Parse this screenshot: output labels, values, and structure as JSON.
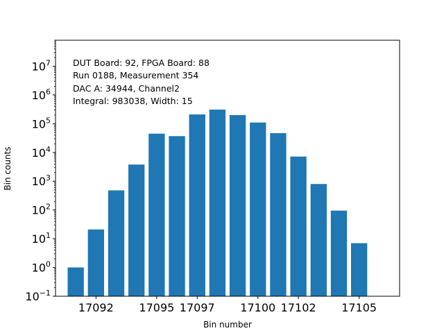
{
  "chart_data": {
    "type": "bar",
    "scale_y": "log",
    "x": [
      17091,
      17092,
      17093,
      17094,
      17095,
      17096,
      17097,
      17098,
      17099,
      17100,
      17101,
      17102,
      17103,
      17104,
      17105
    ],
    "values": [
      1,
      21,
      480,
      3800,
      45000,
      37000,
      210000,
      310000,
      200000,
      110000,
      47000,
      7200,
      800,
      95,
      7
    ],
    "xticks": [
      17092,
      17095,
      17097,
      17100,
      17102,
      17105
    ],
    "xtick_labels": [
      "17092",
      "17095",
      "17097",
      "17100",
      "17102",
      "17105"
    ],
    "ytick_exponents": [
      -1,
      0,
      1,
      2,
      3,
      4,
      5,
      6,
      7
    ],
    "xlim": [
      17090,
      17107
    ],
    "ylim": [
      0.1,
      80000000
    ],
    "xlabel": "Bin number",
    "ylabel": "Bin counts",
    "bar_color": "#1f77b4",
    "annotations": [
      "DUT Board: 92, FPGA Board: 88",
      "Run 0188, Measurement 354",
      "DAC A: 34944, Channel2",
      "Integral: 983038, Width: 15"
    ]
  }
}
